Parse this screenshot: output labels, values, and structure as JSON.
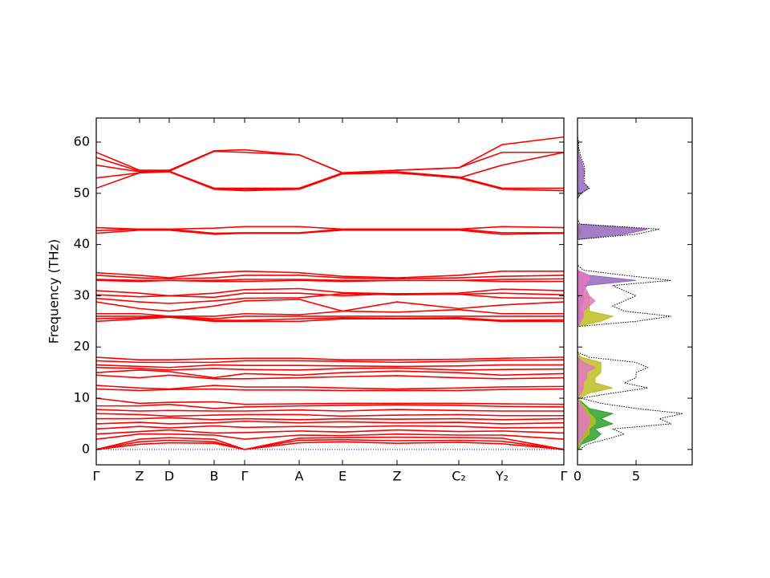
{
  "chart_data": [
    {
      "type": "line",
      "ylabel": "Frequency (THz)",
      "color": "#ff0000",
      "x": [
        0,
        0.54,
        0.91,
        1.47,
        1.85,
        2.53,
        3.07,
        3.75,
        4.52,
        5.06,
        5.83
      ],
      "xlim": [
        0,
        5.83
      ],
      "xticks": [
        {
          "value": 0,
          "label": "Γ"
        },
        {
          "value": 0.54,
          "label": "Z"
        },
        {
          "value": 0.91,
          "label": "D"
        },
        {
          "value": 1.47,
          "label": "B"
        },
        {
          "value": 1.85,
          "label": "Γ"
        },
        {
          "value": 2.53,
          "label": "A"
        },
        {
          "value": 3.07,
          "label": "E"
        },
        {
          "value": 3.75,
          "label": "Z"
        },
        {
          "value": 4.52,
          "label": "C₂"
        },
        {
          "value": 5.06,
          "label": "Y₂"
        },
        {
          "value": 5.83,
          "label": "Γ"
        }
      ],
      "ylim": [
        -3,
        64.7
      ],
      "yticks": [
        0,
        10,
        20,
        30,
        40,
        50,
        60
      ],
      "show_ytick_labels": true,
      "hline": 0,
      "hline_color": "#0000ff",
      "series": [
        {
          "values": [
            58,
            54.5,
            54.5,
            58.3,
            58.5,
            57.5,
            54,
            54.5,
            55,
            59.5,
            61
          ]
        },
        {
          "values": [
            57,
            54.3,
            54.3,
            58.2,
            58,
            57.5,
            54,
            54.5,
            55,
            58,
            58
          ]
        },
        {
          "values": [
            55.5,
            54.2,
            54.3,
            51,
            51,
            51,
            54,
            54,
            53,
            55.5,
            58
          ]
        },
        {
          "values": [
            53,
            54,
            54.3,
            50.8,
            50.8,
            50.8,
            53.8,
            54.2,
            53.2,
            51,
            51
          ]
        },
        {
          "values": [
            51,
            54,
            54.2,
            50.8,
            50.5,
            50.8,
            53.8,
            54,
            53,
            50.8,
            50.5
          ]
        },
        {
          "values": [
            43.3,
            43,
            43,
            43.2,
            43.5,
            43.5,
            43,
            43,
            43,
            43.5,
            43.3
          ]
        },
        {
          "values": [
            42.7,
            43,
            43,
            42.2,
            42.3,
            42.3,
            43,
            43,
            43,
            42.3,
            42.3
          ]
        },
        {
          "values": [
            42.2,
            42.8,
            42.8,
            42,
            42.2,
            42.2,
            42.8,
            42.8,
            42.8,
            42,
            42.2
          ]
        },
        {
          "values": [
            34.5,
            34,
            33.5,
            34.5,
            34.8,
            34.5,
            33.8,
            33.5,
            34,
            34.8,
            34.8
          ]
        },
        {
          "values": [
            34,
            33.5,
            33.3,
            33.5,
            34,
            34,
            33.5,
            33.3,
            33.5,
            33.8,
            34
          ]
        },
        {
          "values": [
            33.2,
            33,
            33,
            33,
            33.2,
            33.2,
            33,
            33,
            33,
            33.2,
            33.3
          ]
        },
        {
          "values": [
            33,
            32.8,
            33,
            32.8,
            32.8,
            33,
            32.8,
            33,
            33,
            32.8,
            32.8
          ]
        },
        {
          "values": [
            31,
            30.5,
            30,
            30.5,
            31.2,
            31.4,
            30.6,
            30.4,
            30.5,
            31.3,
            31
          ]
        },
        {
          "values": [
            30.2,
            29.8,
            30,
            29.7,
            30.5,
            30.5,
            30,
            30.4,
            30.3,
            30.5,
            30.2
          ]
        },
        {
          "values": [
            29.5,
            28.8,
            28.5,
            29,
            29.5,
            29.6,
            30.4,
            30.2,
            30.3,
            29.6,
            29.5
          ]
        },
        {
          "values": [
            28.8,
            27.5,
            27,
            28,
            29,
            29.3,
            27,
            28.8,
            27.5,
            28.2,
            28.8
          ]
        },
        {
          "values": [
            26.5,
            26.5,
            26,
            26,
            26.5,
            26.3,
            27,
            26.8,
            27.3,
            26.5,
            26.5
          ]
        },
        {
          "values": [
            26,
            26,
            26,
            25.5,
            26,
            26,
            26,
            26,
            26,
            26,
            26
          ]
        },
        {
          "values": [
            25.5,
            25.7,
            26,
            25.2,
            25.2,
            25.5,
            25.7,
            25.6,
            25.7,
            25.2,
            25.3
          ]
        },
        {
          "values": [
            25,
            25.5,
            25.8,
            25,
            25,
            25,
            25.5,
            25.5,
            25.5,
            25,
            25
          ]
        },
        {
          "values": [
            18,
            17.5,
            17.5,
            17.7,
            17.8,
            17.8,
            17.5,
            17.5,
            17.6,
            17.8,
            18
          ]
        },
        {
          "values": [
            17.3,
            17,
            17,
            17,
            17.3,
            17.3,
            17.2,
            17,
            17.2,
            17.4,
            17.5
          ]
        },
        {
          "values": [
            16.5,
            16.2,
            16,
            16.5,
            16.4,
            16.4,
            16.3,
            16.2,
            16.3,
            16.5,
            16.5
          ]
        },
        {
          "values": [
            16,
            15.8,
            15.5,
            15.8,
            15.6,
            15.5,
            15.8,
            15.9,
            15.5,
            15.6,
            15.7
          ]
        },
        {
          "values": [
            15,
            15.5,
            15.2,
            14,
            14.8,
            14.5,
            15,
            15.3,
            15,
            14.5,
            14.8
          ]
        },
        {
          "values": [
            14.5,
            14,
            14.5,
            13.8,
            13.8,
            14,
            14.2,
            14.4,
            14,
            13.8,
            14
          ]
        },
        {
          "values": [
            12.5,
            12,
            11.8,
            12.5,
            12.2,
            12.2,
            12,
            11.8,
            12,
            12.2,
            12.3
          ]
        },
        {
          "values": [
            11.8,
            11.5,
            11.7,
            11.8,
            11.6,
            11.6,
            11.5,
            11.5,
            11.5,
            11.7,
            11.8
          ]
        },
        {
          "values": [
            10,
            9,
            9.2,
            9.3,
            8.8,
            8.9,
            9,
            9,
            9,
            8.9,
            8.8
          ]
        },
        {
          "values": [
            8.5,
            8.5,
            8.8,
            8,
            8.3,
            8.5,
            8.6,
            8.7,
            8.6,
            8.4,
            8.3
          ]
        },
        {
          "values": [
            7.8,
            7.5,
            7.6,
            7.5,
            7.5,
            7.7,
            7.5,
            7.8,
            7.6,
            7.5,
            7.5
          ]
        },
        {
          "values": [
            7,
            6.8,
            6.5,
            6.7,
            6.8,
            6.8,
            6.5,
            6.7,
            6.8,
            6.6,
            6.6
          ]
        },
        {
          "values": [
            6,
            6,
            6.2,
            5.8,
            6,
            5.8,
            6,
            5.9,
            6,
            5.8,
            6
          ]
        },
        {
          "values": [
            5,
            5.3,
            5,
            5.2,
            5.5,
            5.2,
            5.4,
            5.2,
            5.3,
            5,
            5.2
          ]
        },
        {
          "values": [
            4,
            4.5,
            4.2,
            4.6,
            4.3,
            4.5,
            4.4,
            4.6,
            4.5,
            4.2,
            4.3
          ]
        },
        {
          "values": [
            3,
            3.5,
            3.8,
            3.2,
            3.3,
            3.6,
            3.4,
            3.8,
            3.5,
            3.6,
            3.2
          ]
        },
        {
          "values": [
            2,
            3,
            3,
            2.8,
            2,
            2.8,
            2.7,
            3,
            2.8,
            2.8,
            2
          ]
        },
        {
          "values": [
            0,
            2,
            2.3,
            2,
            0,
            2.2,
            2.3,
            2.4,
            2.3,
            2.2,
            0
          ]
        },
        {
          "values": [
            0,
            1.5,
            1.8,
            1.5,
            0,
            1.8,
            1.9,
            1.7,
            1.8,
            1.6,
            0
          ]
        },
        {
          "values": [
            0,
            1,
            1.3,
            1.2,
            0,
            1.3,
            1.5,
            1.2,
            1.4,
            1.1,
            0
          ]
        }
      ]
    },
    {
      "type": "dos",
      "frequencies": [
        0,
        1,
        2,
        3,
        4,
        5,
        6,
        7,
        8,
        9,
        10,
        11,
        12,
        13,
        14,
        15,
        16,
        17,
        18,
        19,
        20,
        21,
        22,
        23,
        24,
        25,
        26,
        27,
        28,
        29,
        30,
        31,
        32,
        33,
        34,
        35,
        36,
        37,
        38,
        39,
        40,
        41,
        42,
        43,
        44,
        45,
        46,
        47,
        48,
        49,
        50,
        51,
        52,
        53,
        54,
        55,
        56,
        57,
        58,
        59,
        60,
        61,
        62
      ],
      "xlim": [
        0,
        9.8
      ],
      "xticks": [
        0,
        5
      ],
      "ylim": [
        -3,
        64.7
      ],
      "yticks": [
        0,
        10,
        20,
        30,
        40,
        50,
        60
      ],
      "show_ytick_labels": false,
      "series": [
        {
          "color": "#2ca02c",
          "values": [
            0.1,
            0.3,
            1.5,
            2,
            1.5,
            3,
            2,
            3,
            1,
            0.5,
            0,
            0,
            0,
            0,
            0,
            0,
            0,
            0,
            0,
            0,
            0,
            0,
            0,
            0,
            0,
            0,
            0,
            0,
            0,
            0,
            0,
            0,
            0,
            0,
            0,
            0,
            0,
            0,
            0,
            0,
            0,
            0,
            0,
            0,
            0,
            0,
            0,
            0,
            0,
            0,
            0,
            0,
            0,
            0,
            0,
            0,
            0,
            0,
            0,
            0,
            0,
            0,
            0
          ]
        },
        {
          "color": "#bcbd22",
          "values": [
            0,
            0.2,
            0.5,
            1,
            1,
            1.5,
            1.5,
            1,
            0.8,
            0.3,
            0.1,
            1,
            3,
            1.5,
            1.5,
            2,
            2,
            2,
            0.3,
            0,
            0,
            0,
            0,
            0,
            0,
            2,
            3,
            1,
            1,
            1,
            1,
            0.5,
            0.3,
            0.5,
            0.3,
            0,
            0,
            0,
            0,
            0,
            0,
            0,
            0.2,
            0.3,
            0,
            0,
            0,
            0,
            0,
            0,
            0,
            0,
            0,
            0,
            0,
            0,
            0,
            0,
            0,
            0,
            0,
            0,
            0
          ]
        },
        {
          "color": "#9467bd",
          "values": [
            0,
            0,
            0,
            0,
            0,
            0,
            0,
            0,
            0,
            0,
            0,
            0,
            0,
            0,
            0,
            0,
            0,
            0,
            0,
            0,
            0,
            0,
            0,
            0,
            0,
            0.3,
            0.5,
            0.3,
            0.3,
            0.5,
            0.5,
            0.5,
            0.8,
            5,
            1,
            0,
            0,
            0,
            0,
            0,
            0,
            0,
            4,
            6,
            0,
            0,
            0,
            0,
            0,
            0,
            0.3,
            1,
            0.5,
            0.5,
            0.6,
            0.5,
            0.4,
            0.2,
            0.1,
            0.1,
            0,
            0,
            0
          ]
        },
        {
          "color": "#e377c2",
          "values": [
            0,
            0,
            0.3,
            0.5,
            0.8,
            1,
            1,
            0.8,
            0.5,
            0.2,
            0,
            0.3,
            0.5,
            0.5,
            0.8,
            0.8,
            1.5,
            0.5,
            0,
            0,
            0,
            0,
            0,
            0,
            0,
            0.3,
            0.5,
            0.5,
            1,
            1.5,
            1,
            0.8,
            0.5,
            1,
            1,
            0,
            0,
            0,
            0,
            0,
            0,
            0,
            0,
            0,
            0,
            0,
            0,
            0,
            0,
            0,
            0,
            0,
            0,
            0,
            0,
            0,
            0,
            0,
            0,
            0,
            0,
            0,
            0
          ]
        },
        {
          "color": "#000000",
          "style": "dotted",
          "values": [
            0.2,
            0.8,
            2.5,
            4,
            3,
            8,
            7,
            9,
            5,
            2,
            0.3,
            3,
            6,
            4,
            5,
            5,
            6,
            5,
            1,
            0,
            0,
            0,
            0,
            0,
            0,
            5,
            8,
            4,
            3,
            4,
            5,
            4,
            3,
            8,
            4,
            0.5,
            0,
            0,
            0,
            0,
            0,
            0,
            5,
            7,
            0.2,
            0,
            0,
            0,
            0,
            0,
            0.3,
            1,
            0.6,
            0.6,
            0.6,
            0.6,
            0.5,
            0.3,
            0.2,
            0.1,
            0.1,
            0,
            0
          ]
        }
      ]
    }
  ]
}
